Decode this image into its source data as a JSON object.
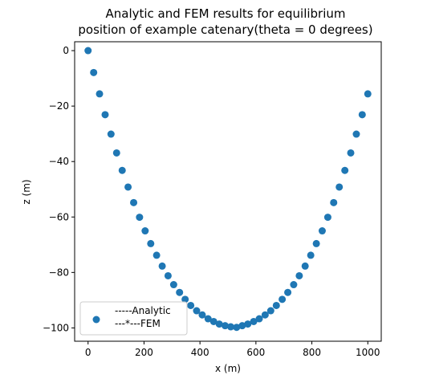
{
  "chart_data": {
    "type": "scatter",
    "title_line1": "Analytic and FEM results for equilibrium",
    "title_line2": "position of example catenary(theta = 0 degrees)",
    "xlabel": "x (m)",
    "ylabel": "z (m)",
    "xlim": [
      -48,
      1048
    ],
    "ylim": [
      -104.8,
      3.2
    ],
    "xticks": [
      0,
      200,
      400,
      600,
      800,
      1000
    ],
    "xtick_labels": [
      "0",
      "200",
      "400",
      "600",
      "800",
      "1000"
    ],
    "yticks": [
      0,
      -20,
      -40,
      -60,
      -80,
      -100
    ],
    "ytick_labels": [
      "0",
      "−20",
      "−40",
      "−60",
      "−80",
      "−100"
    ],
    "grid": false,
    "legend_placement": "lower-left",
    "legend_lines": [
      "-----Analytic",
      "---*---FEM"
    ],
    "marker_color": "#1f77b4",
    "series": [
      {
        "x": [
          0,
          20,
          41,
          61,
          82,
          102,
          122,
          143,
          163,
          184,
          204,
          224,
          245,
          265,
          286,
          306,
          327,
          347,
          367,
          388,
          408,
          429,
          449,
          469,
          490,
          510,
          531,
          551,
          571,
          592,
          612,
          633,
          653,
          673,
          694,
          714,
          735,
          755,
          776,
          796,
          816,
          837,
          857,
          878,
          898,
          918,
          939,
          959,
          980,
          1000
        ],
        "y": [
          0,
          -7.9,
          -15.6,
          -23.1,
          -30.1,
          -36.9,
          -43.2,
          -49.2,
          -54.8,
          -60.1,
          -65.0,
          -69.6,
          -73.8,
          -77.7,
          -81.2,
          -84.4,
          -87.2,
          -89.7,
          -91.9,
          -93.8,
          -95.3,
          -96.7,
          -97.7,
          -98.6,
          -99.2,
          -99.6,
          -99.8,
          -99.2,
          -98.6,
          -97.7,
          -96.7,
          -95.3,
          -93.8,
          -91.9,
          -89.7,
          -87.2,
          -84.4,
          -81.2,
          -77.7,
          -73.8,
          -69.6,
          -65.0,
          -60.1,
          -54.8,
          -49.2,
          -43.2,
          -36.9,
          -30.1,
          -23.1,
          -15.6
        ]
      }
    ]
  }
}
